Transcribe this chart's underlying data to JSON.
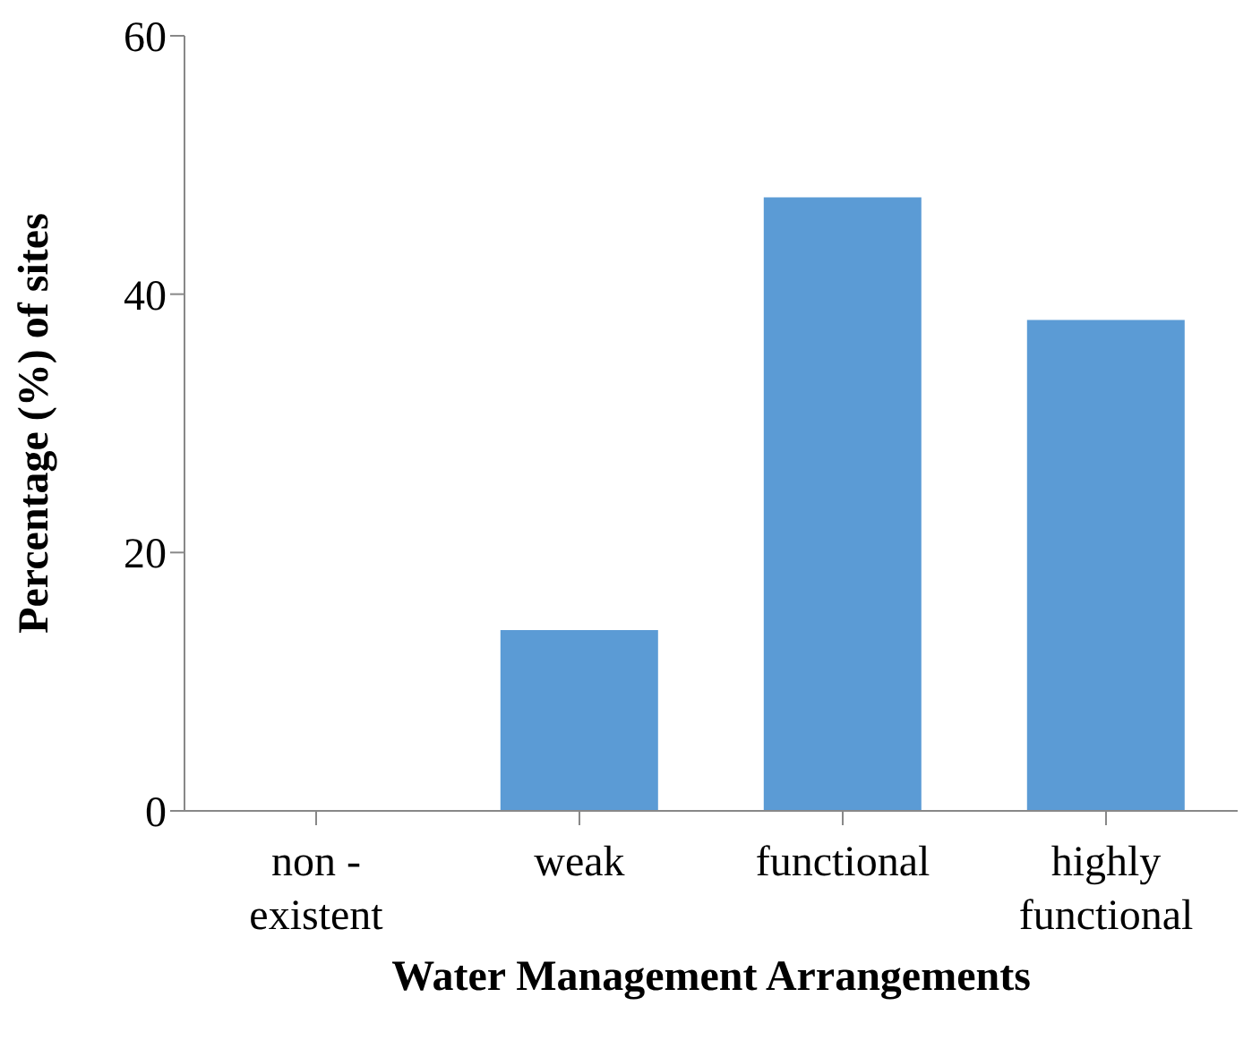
{
  "chart_data": {
    "type": "bar",
    "xlabel": "Water Management Arrangements",
    "ylabel": "Percentage (%) of sites",
    "categories": [
      "non - existent",
      "weak",
      "functional",
      "highly functional"
    ],
    "values": [
      0,
      14,
      47.5,
      38
    ],
    "color": "#5b9bd5",
    "ylim": [
      0,
      60
    ],
    "yticks": [
      0,
      20,
      40,
      60
    ],
    "grid": false,
    "legend": false
  }
}
